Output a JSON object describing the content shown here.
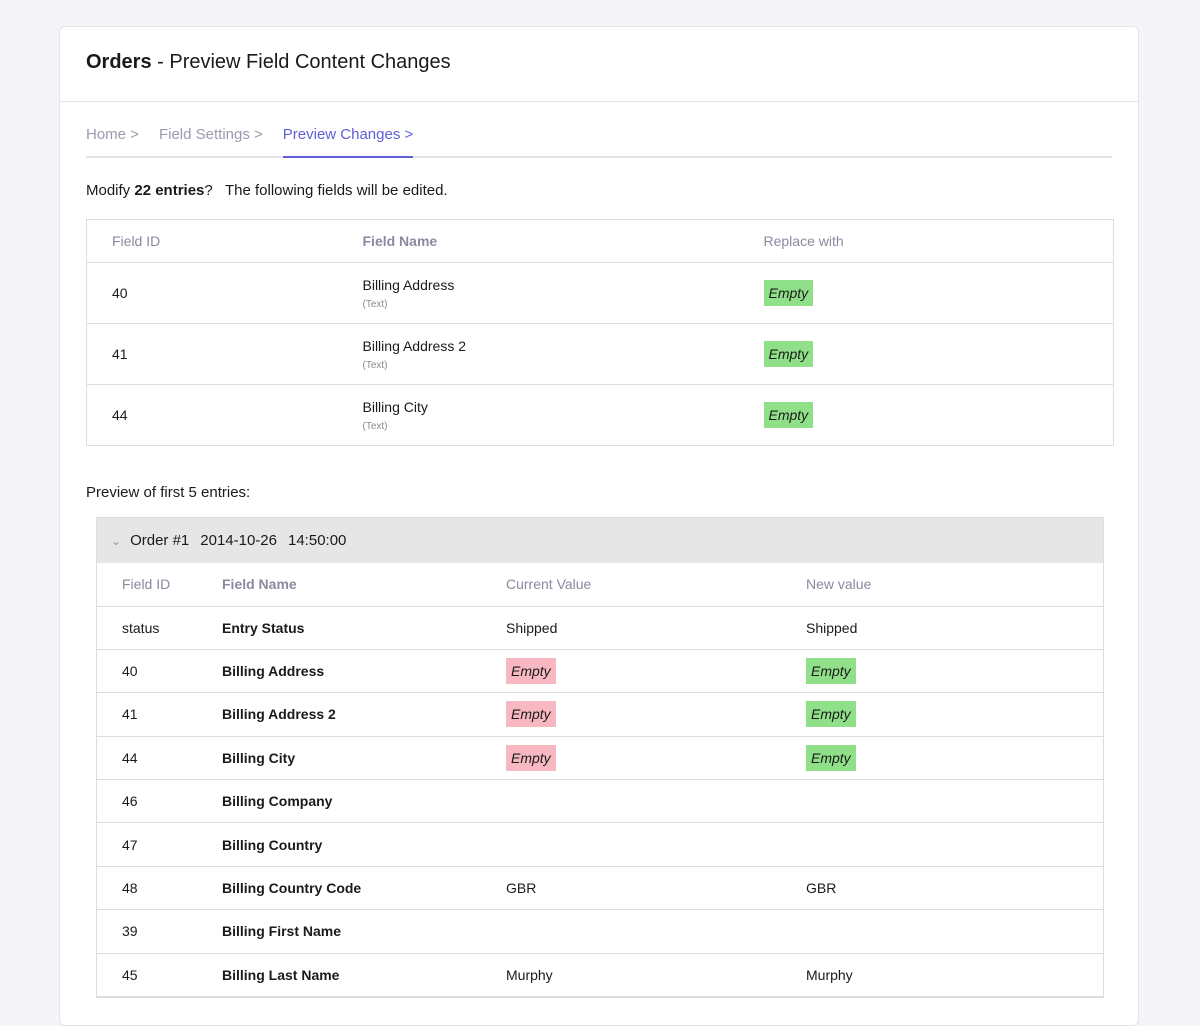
{
  "header": {
    "title_strong": "Orders",
    "title_rest": " - Preview Field Content Changes"
  },
  "breadcrumb": [
    {
      "label": "Home >",
      "active": false
    },
    {
      "label": "Field Settings >",
      "active": false
    },
    {
      "label": "Preview Changes >",
      "active": true
    }
  ],
  "summary": {
    "prefix": "Modify ",
    "count": "22 entries",
    "suffix": "?   The following fields will be edited."
  },
  "fields_table": {
    "headers": [
      "Field ID",
      "Field Name",
      "Replace with"
    ],
    "rows": [
      {
        "id": "40",
        "name": "Billing Address",
        "type": "(Text)",
        "replace": "Empty"
      },
      {
        "id": "41",
        "name": "Billing Address 2",
        "type": "(Text)",
        "replace": "Empty"
      },
      {
        "id": "44",
        "name": "Billing City",
        "type": "(Text)",
        "replace": "Empty"
      }
    ]
  },
  "preview_label": "Preview of first 5 entries:",
  "entry": {
    "order": "Order #1",
    "date": "2014-10-26",
    "time": "14:50:00",
    "headers": [
      "Field ID",
      "Field Name",
      "Current Value",
      "New value"
    ],
    "rows": [
      {
        "id": "status",
        "name": "Entry Status",
        "current": "Shipped",
        "new": "Shipped",
        "current_tag": false,
        "new_tag": false
      },
      {
        "id": "40",
        "name": "Billing Address",
        "current": "Empty",
        "new": "Empty",
        "current_tag": true,
        "new_tag": true
      },
      {
        "id": "41",
        "name": "Billing Address 2",
        "current": "Empty",
        "new": "Empty",
        "current_tag": true,
        "new_tag": true
      },
      {
        "id": "44",
        "name": "Billing City",
        "current": "Empty",
        "new": "Empty",
        "current_tag": true,
        "new_tag": true
      },
      {
        "id": "46",
        "name": "Billing Company",
        "current": "",
        "new": "",
        "current_tag": false,
        "new_tag": false
      },
      {
        "id": "47",
        "name": "Billing Country",
        "current": "",
        "new": "",
        "current_tag": false,
        "new_tag": false
      },
      {
        "id": "48",
        "name": "Billing Country Code",
        "current": "GBR",
        "new": "GBR",
        "current_tag": false,
        "new_tag": false
      },
      {
        "id": "39",
        "name": "Billing First Name",
        "current": "",
        "new": "",
        "current_tag": false,
        "new_tag": false
      },
      {
        "id": "45",
        "name": "Billing Last Name",
        "current": "Murphy",
        "new": "Murphy",
        "current_tag": false,
        "new_tag": false
      }
    ]
  },
  "colors": {
    "accent": "#5f5fd8",
    "new_tag": "#90e08a",
    "current_tag": "#f7b8c2"
  },
  "icons": {
    "entry_toggle": "chevron-down-icon"
  }
}
